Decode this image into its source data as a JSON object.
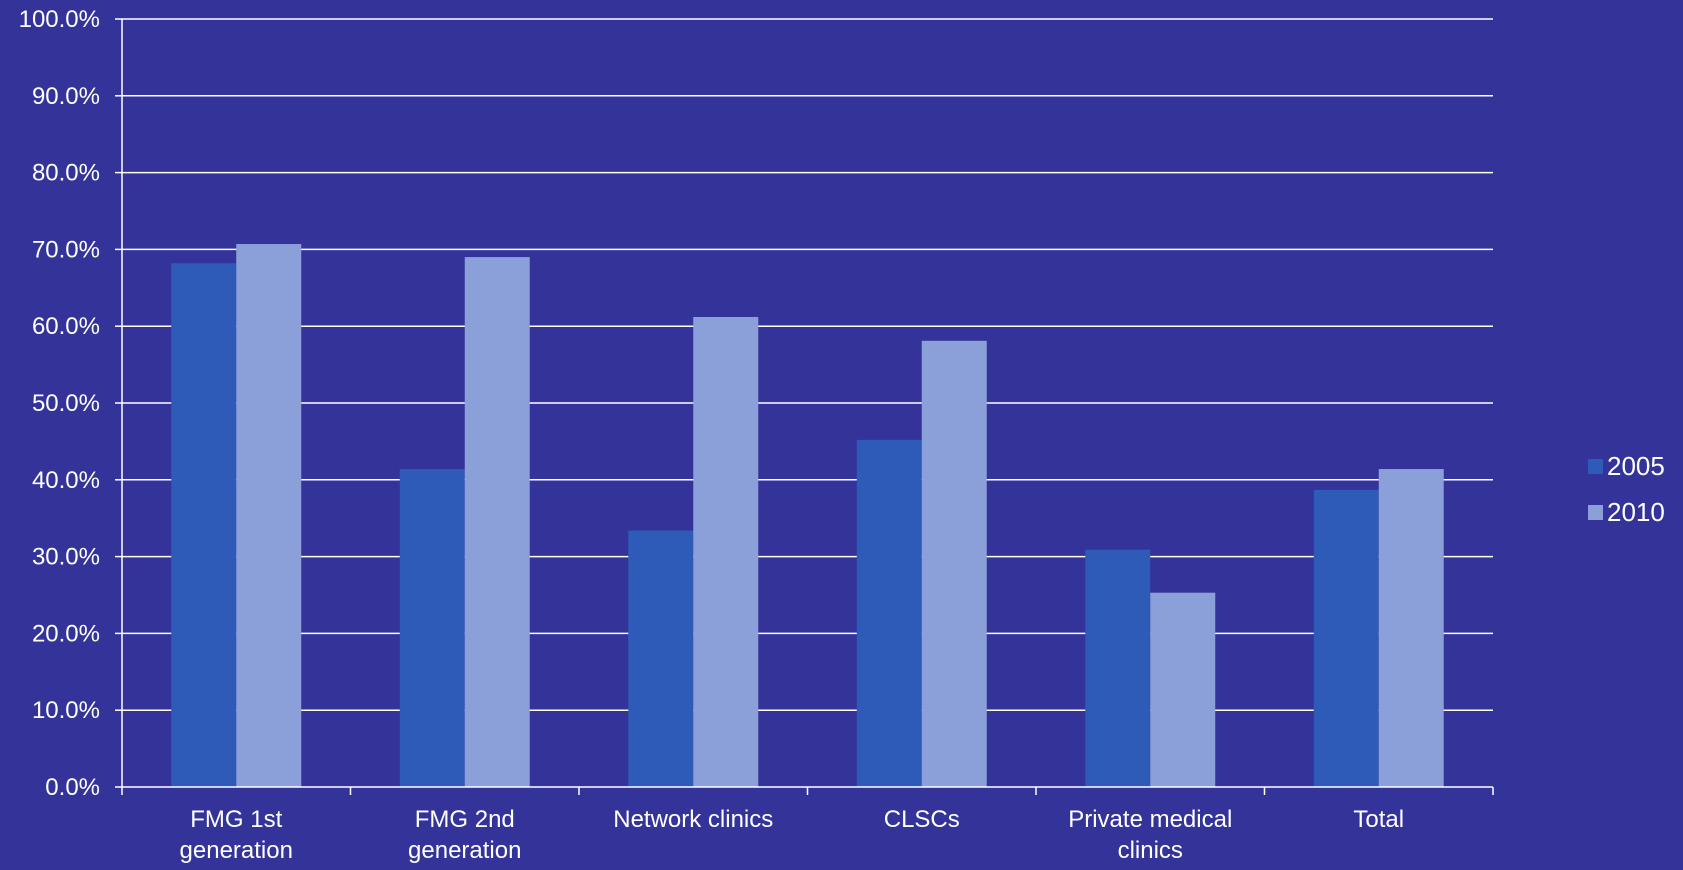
{
  "colors": {
    "background": "#333399",
    "gridline": "#ffffff",
    "axis": "#ffffff",
    "text": "#ffffff",
    "series_2005": "#2e5bb7",
    "series_2010": "#8b9fd9"
  },
  "chart_data": {
    "type": "bar",
    "title": "",
    "xlabel": "",
    "ylabel": "",
    "categories": [
      [
        "FMG 1st",
        "generation"
      ],
      [
        "FMG 2nd",
        "generation"
      ],
      [
        "Network clinics"
      ],
      [
        "CLSCs"
      ],
      [
        "Private medical",
        "clinics"
      ],
      [
        "Total"
      ]
    ],
    "series": [
      {
        "name": "2005",
        "values": [
          68.2,
          41.4,
          33.4,
          45.2,
          30.9,
          38.7
        ]
      },
      {
        "name": "2010",
        "values": [
          70.7,
          69.0,
          61.2,
          58.1,
          25.3,
          41.4
        ]
      }
    ],
    "ylim": [
      0,
      100
    ],
    "yticks": [
      "0.0%",
      "10.0%",
      "20.0%",
      "30.0%",
      "40.0%",
      "50.0%",
      "60.0%",
      "70.0%",
      "80.0%",
      "90.0%",
      "100.0%"
    ],
    "grid": true,
    "legend": "right"
  }
}
